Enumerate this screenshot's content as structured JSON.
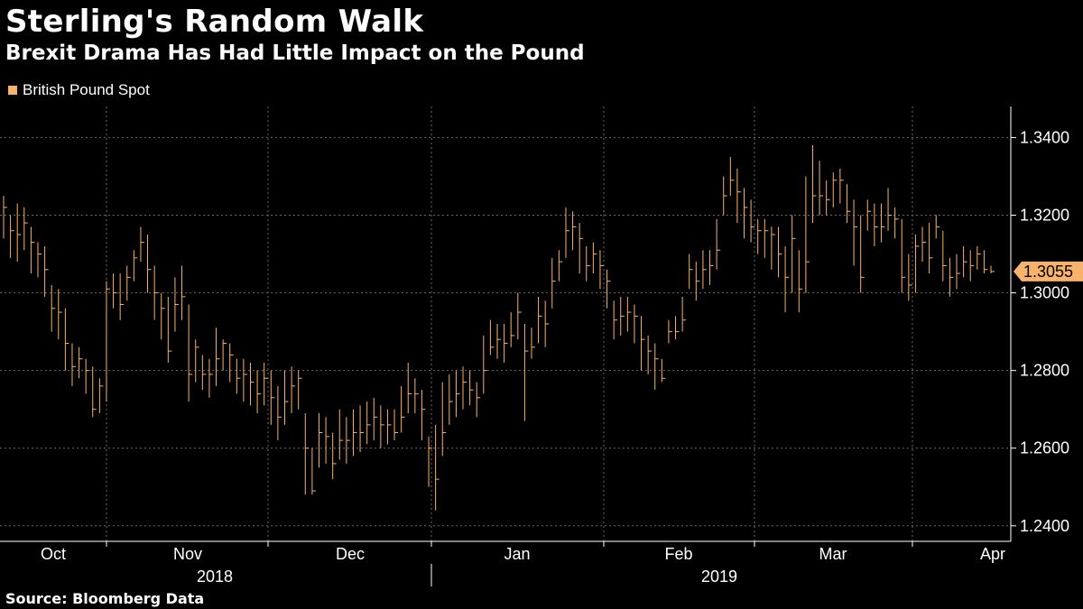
{
  "title": "Sterling's Random Walk",
  "subtitle": "Brexit Drama Has Had Little Impact on the Pound",
  "source": "Source: Bloomberg Data",
  "colors": {
    "series": "#f7b36b",
    "grid": "#6a6a6a",
    "axis": "#ffffff",
    "background": "#000000"
  },
  "chart_data": {
    "type": "ohlc",
    "title": "Sterling's Random Walk",
    "subtitle": "Brexit Drama Has Had Little Impact on the Pound",
    "series_name": "British Pound Spot",
    "last_value": 1.3055,
    "last_value_label": "1.3055",
    "ylim": [
      1.236,
      1.348
    ],
    "yticks": [
      1.24,
      1.26,
      1.28,
      1.3,
      1.32,
      1.34
    ],
    "ytick_labels": [
      "1.2400",
      "1.2600",
      "1.2800",
      "1.3000",
      "1.3200",
      "1.3400"
    ],
    "x_month_labels": [
      "Oct",
      "Nov",
      "Dec",
      "Jan",
      "Feb",
      "Mar",
      "Apr"
    ],
    "x_year_labels": [
      "2018",
      "2019"
    ],
    "y_axis_side": "right",
    "grid": true,
    "legend_position": "top-left",
    "closes": [
      1.322,
      1.316,
      1.315,
      1.318,
      1.313,
      1.31,
      1.306,
      1.296,
      1.295,
      1.287,
      1.281,
      1.283,
      1.28,
      1.27,
      1.276,
      1.301,
      1.3,
      1.297,
      1.304,
      1.309,
      1.313,
      1.306,
      1.3,
      1.296,
      1.285,
      1.297,
      1.299,
      1.279,
      1.286,
      1.279,
      1.279,
      1.283,
      1.287,
      1.284,
      1.278,
      1.279,
      1.277,
      1.274,
      1.278,
      1.273,
      1.268,
      1.272,
      1.276,
      1.278,
      1.26,
      1.249,
      1.264,
      1.263,
      1.256,
      1.262,
      1.262,
      1.264,
      1.264,
      1.266,
      1.268,
      1.266,
      1.266,
      1.264,
      1.268,
      1.274,
      1.274,
      1.27,
      1.26,
      1.252,
      1.264,
      1.272,
      1.274,
      1.277,
      1.275,
      1.273,
      1.28,
      1.286,
      1.288,
      1.287,
      1.289,
      1.295,
      1.285,
      1.286,
      1.294,
      1.292,
      1.303,
      1.308,
      1.316,
      1.317,
      1.314,
      1.307,
      1.31,
      1.307,
      1.303,
      1.293,
      1.294,
      1.295,
      1.294,
      1.288,
      1.285,
      1.283,
      1.278,
      1.29,
      1.29,
      1.293,
      1.306,
      1.303,
      1.306,
      1.307,
      1.311,
      1.325,
      1.329,
      1.326,
      1.322,
      1.317,
      1.316,
      1.316,
      1.315,
      1.31,
      1.304,
      1.314,
      1.301,
      1.308,
      1.325,
      1.325,
      1.324,
      1.329,
      1.329,
      1.321,
      1.317,
      1.304,
      1.321,
      1.317,
      1.317,
      1.32,
      1.319,
      1.304,
      1.302,
      1.312,
      1.313,
      1.309,
      1.317,
      1.307,
      1.304,
      1.305,
      1.308,
      1.307,
      1.31,
      1.306,
      1.3055
    ],
    "ranges": [
      [
        1.314,
        1.325
      ],
      [
        1.309,
        1.32
      ],
      [
        1.308,
        1.323
      ],
      [
        1.311,
        1.322
      ],
      [
        1.305,
        1.317
      ],
      [
        1.304,
        1.313
      ],
      [
        1.299,
        1.312
      ],
      [
        1.29,
        1.302
      ],
      [
        1.288,
        1.301
      ],
      [
        1.28,
        1.296
      ],
      [
        1.276,
        1.287
      ],
      [
        1.278,
        1.286
      ],
      [
        1.274,
        1.283
      ],
      [
        1.268,
        1.281
      ],
      [
        1.269,
        1.278
      ],
      [
        1.272,
        1.303
      ],
      [
        1.296,
        1.305
      ],
      [
        1.293,
        1.305
      ],
      [
        1.298,
        1.307
      ],
      [
        1.303,
        1.311
      ],
      [
        1.308,
        1.317
      ],
      [
        1.3,
        1.315
      ],
      [
        1.293,
        1.307
      ],
      [
        1.288,
        1.3
      ],
      [
        1.282,
        1.299
      ],
      [
        1.29,
        1.304
      ],
      [
        1.293,
        1.307
      ],
      [
        1.272,
        1.297
      ],
      [
        1.277,
        1.288
      ],
      [
        1.275,
        1.284
      ],
      [
        1.273,
        1.283
      ],
      [
        1.276,
        1.291
      ],
      [
        1.28,
        1.288
      ],
      [
        1.277,
        1.287
      ],
      [
        1.274,
        1.283
      ],
      [
        1.272,
        1.283
      ],
      [
        1.271,
        1.282
      ],
      [
        1.269,
        1.28
      ],
      [
        1.271,
        1.282
      ],
      [
        1.266,
        1.28
      ],
      [
        1.262,
        1.276
      ],
      [
        1.266,
        1.28
      ],
      [
        1.269,
        1.281
      ],
      [
        1.27,
        1.28
      ],
      [
        1.248,
        1.269
      ],
      [
        1.248,
        1.26
      ],
      [
        1.255,
        1.269
      ],
      [
        1.256,
        1.268
      ],
      [
        1.252,
        1.264
      ],
      [
        1.257,
        1.27
      ],
      [
        1.256,
        1.268
      ],
      [
        1.258,
        1.27
      ],
      [
        1.259,
        1.271
      ],
      [
        1.261,
        1.272
      ],
      [
        1.262,
        1.273
      ],
      [
        1.26,
        1.271
      ],
      [
        1.261,
        1.27
      ],
      [
        1.262,
        1.27
      ],
      [
        1.264,
        1.276
      ],
      [
        1.269,
        1.282
      ],
      [
        1.269,
        1.278
      ],
      [
        1.262,
        1.275
      ],
      [
        1.25,
        1.263
      ],
      [
        1.244,
        1.266
      ],
      [
        1.258,
        1.277
      ],
      [
        1.266,
        1.279
      ],
      [
        1.268,
        1.28
      ],
      [
        1.27,
        1.281
      ],
      [
        1.271,
        1.28
      ],
      [
        1.268,
        1.277
      ],
      [
        1.274,
        1.289
      ],
      [
        1.284,
        1.293
      ],
      [
        1.283,
        1.292
      ],
      [
        1.282,
        1.292
      ],
      [
        1.286,
        1.295
      ],
      [
        1.288,
        1.3
      ],
      [
        1.267,
        1.292
      ],
      [
        1.283,
        1.291
      ],
      [
        1.287,
        1.299
      ],
      [
        1.286,
        1.298
      ],
      [
        1.296,
        1.309
      ],
      [
        1.303,
        1.311
      ],
      [
        1.309,
        1.322
      ],
      [
        1.311,
        1.321
      ],
      [
        1.305,
        1.318
      ],
      [
        1.303,
        1.312
      ],
      [
        1.305,
        1.313
      ],
      [
        1.301,
        1.311
      ],
      [
        1.296,
        1.306
      ],
      [
        1.288,
        1.298
      ],
      [
        1.289,
        1.299
      ],
      [
        1.29,
        1.299
      ],
      [
        1.287,
        1.297
      ],
      [
        1.28,
        1.294
      ],
      [
        1.279,
        1.289
      ],
      [
        1.275,
        1.287
      ],
      [
        1.277,
        1.283
      ],
      [
        1.287,
        1.293
      ],
      [
        1.288,
        1.294
      ],
      [
        1.29,
        1.299
      ],
      [
        1.301,
        1.31
      ],
      [
        1.298,
        1.308
      ],
      [
        1.301,
        1.311
      ],
      [
        1.302,
        1.311
      ],
      [
        1.306,
        1.319
      ],
      [
        1.32,
        1.33
      ],
      [
        1.325,
        1.335
      ],
      [
        1.318,
        1.332
      ],
      [
        1.314,
        1.327
      ],
      [
        1.313,
        1.324
      ],
      [
        1.31,
        1.319
      ],
      [
        1.309,
        1.319
      ],
      [
        1.306,
        1.317
      ],
      [
        1.304,
        1.317
      ],
      [
        1.295,
        1.312
      ],
      [
        1.3,
        1.32
      ],
      [
        1.295,
        1.311
      ],
      [
        1.3,
        1.33
      ],
      [
        1.318,
        1.338
      ],
      [
        1.32,
        1.334
      ],
      [
        1.32,
        1.329
      ],
      [
        1.322,
        1.331
      ],
      [
        1.323,
        1.332
      ],
      [
        1.318,
        1.328
      ],
      [
        1.307,
        1.324
      ],
      [
        1.3,
        1.32
      ],
      [
        1.316,
        1.324
      ],
      [
        1.312,
        1.323
      ],
      [
        1.313,
        1.323
      ],
      [
        1.316,
        1.327
      ],
      [
        1.314,
        1.322
      ],
      [
        1.3,
        1.319
      ],
      [
        1.298,
        1.31
      ],
      [
        1.3,
        1.315
      ],
      [
        1.308,
        1.317
      ],
      [
        1.305,
        1.318
      ],
      [
        1.314,
        1.32
      ],
      [
        1.303,
        1.316
      ],
      [
        1.299,
        1.309
      ],
      [
        1.301,
        1.31
      ],
      [
        1.304,
        1.312
      ],
      [
        1.303,
        1.311
      ],
      [
        1.306,
        1.312
      ],
      [
        1.305,
        1.311
      ],
      [
        1.305,
        1.307
      ]
    ]
  }
}
